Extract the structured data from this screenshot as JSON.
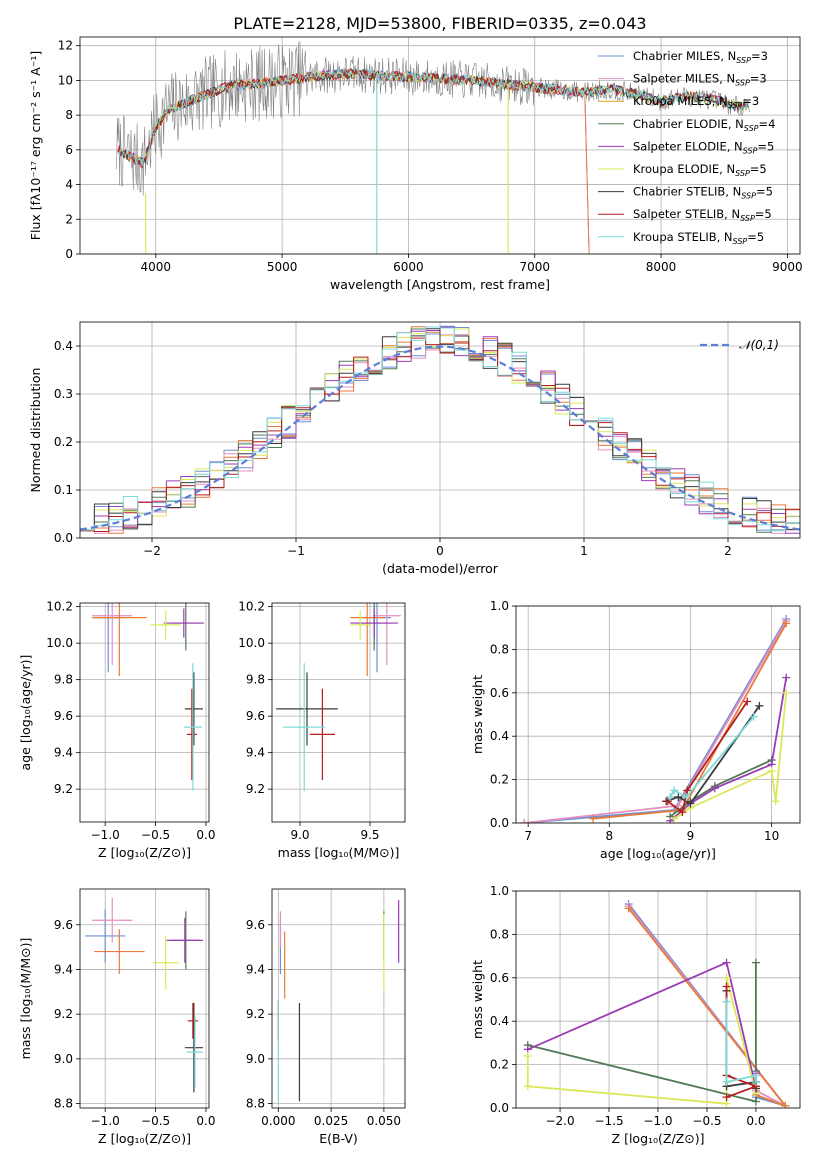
{
  "figure_title": "PLATE=2128, MJD=53800, FIBERID=0335, z=0.043",
  "model_colors": [
    "#6f8fd6",
    "#e58fc0",
    "#d6a21e",
    "#507a55",
    "#9a3db5",
    "#dbe85a",
    "#3c3c3c",
    "#b51e1e",
    "#7fd8d8"
  ],
  "extra_colors": {
    "data": "#808080",
    "orange": "#e87a3a",
    "gauss": "#5b7fd6",
    "grid": "#b0b0b0"
  },
  "chart_data": [
    {
      "id": "spectrum",
      "type": "line",
      "xlabel": "wavelength [Angstrom, rest frame]",
      "ylabel": "Flux [fλ10⁻¹⁷ erg cm⁻² s⁻¹ A⁻¹]",
      "xlim": [
        3400,
        9100
      ],
      "ylim": [
        0,
        12.5
      ],
      "xticks": [
        4000,
        5000,
        6000,
        7000,
        8000,
        9000
      ],
      "yticks": [
        0,
        2,
        4,
        6,
        8,
        10,
        12
      ],
      "legend_position": "top-right",
      "legend": [
        {
          "name": "Chabrier MILES",
          "sub": "SSP",
          "n": "=3"
        },
        {
          "name": "Salpeter MILES",
          "sub": "SSP",
          "n": "=3"
        },
        {
          "name": "Kroupa MILES",
          "sub": "SSP",
          "n": "=3"
        },
        {
          "name": "Chabrier ELODIE",
          "sub": "SSP",
          "n": "=4"
        },
        {
          "name": "Salpeter ELODIE",
          "sub": "SSP",
          "n": "=5"
        },
        {
          "name": "Kroupa ELODIE",
          "sub": "SSP",
          "n": "=5"
        },
        {
          "name": "Chabrier STELIB",
          "sub": "SSP",
          "n": "=5"
        },
        {
          "name": "Salpeter STELIB",
          "sub": "SSP",
          "n": "=5"
        },
        {
          "name": "Kroupa STELIB",
          "sub": "SSP",
          "n": "=5"
        }
      ],
      "continuum": {
        "x": [
          3700,
          3800,
          3900,
          4000,
          4100,
          4200,
          4400,
          4600,
          4800,
          5000,
          5200,
          5500,
          6000,
          6500,
          7000,
          7400,
          7600,
          7800,
          8000,
          8200,
          8400,
          8600,
          8700
        ],
        "y": [
          6.0,
          5.6,
          5.2,
          7.3,
          8.3,
          8.6,
          9.2,
          9.7,
          9.8,
          10.0,
          10.2,
          10.4,
          10.2,
          10.0,
          9.6,
          9.3,
          9.5,
          9.2,
          8.8,
          9.1,
          8.9,
          8.5,
          8.6
        ]
      }
    },
    {
      "id": "residuals",
      "type": "histogram",
      "xlabel": "(data-model)/error",
      "ylabel": "Normed distribution",
      "xlim": [
        -2.5,
        2.5
      ],
      "ylim": [
        0,
        0.45
      ],
      "xticks": [
        -2,
        -1,
        0,
        1,
        2
      ],
      "yticks": [
        0.0,
        0.1,
        0.2,
        0.3,
        0.4
      ],
      "bin_edges_start": -2.5,
      "bin_width": 0.1,
      "legend_label": "𝒩(0,1)",
      "legend_position": "top-right"
    },
    {
      "id": "age_vs_z",
      "type": "errorbar",
      "xlabel": "Z [log₁₀(Z/Z⊙)]",
      "ylabel": "age  [log₁₀(age/yr)]",
      "xlim": [
        -1.25,
        0.03
      ],
      "ylim": [
        9.02,
        10.22
      ],
      "xticks": [
        -1.0,
        -0.5,
        0.0
      ],
      "yticks": [
        9.2,
        9.4,
        9.6,
        9.8,
        10.0,
        10.2
      ],
      "points": [
        {
          "m": 0,
          "x": -0.97,
          "xe": 0.15,
          "y": 10.14,
          "ye": 0.3
        },
        {
          "m": 1,
          "x": -0.93,
          "xe": 0.2,
          "y": 10.15,
          "ye": 0.27
        },
        {
          "m": 2,
          "x": -0.86,
          "xe": 0.27,
          "y": 10.14,
          "ye": 0.32
        },
        {
          "m": 3,
          "x": -0.2,
          "xe": 0.15,
          "y": 10.11,
          "ye": 0.15
        },
        {
          "m": 4,
          "x": -0.22,
          "xe": 0.2,
          "y": 10.11,
          "ye": 0.08
        },
        {
          "m": 5,
          "x": -0.4,
          "xe": 0.15,
          "y": 10.1,
          "ye": 0.08
        },
        {
          "m": 6,
          "x": -0.12,
          "xe": 0.09,
          "y": 9.64,
          "ye": 0.2
        },
        {
          "m": 7,
          "x": -0.14,
          "xe": 0.05,
          "y": 9.5,
          "ye": 0.25
        },
        {
          "m": 8,
          "x": -0.13,
          "xe": 0.09,
          "y": 9.54,
          "ye": 0.35
        }
      ]
    },
    {
      "id": "age_vs_mass",
      "type": "errorbar",
      "xlabel": "mass [log₁₀(M/M⊙)]",
      "ylabel": "",
      "xlim": [
        8.8,
        9.75
      ],
      "ylim": [
        9.02,
        10.22
      ],
      "xticks": [
        9.0,
        9.5
      ],
      "yticks": [
        9.2,
        9.4,
        9.6,
        9.8,
        10.0,
        10.2
      ],
      "points": [
        {
          "m": 0,
          "x": 9.55,
          "xe": 0.1,
          "y": 10.14,
          "ye": 0.3
        },
        {
          "m": 1,
          "x": 9.62,
          "xe": 0.1,
          "y": 10.15,
          "ye": 0.27
        },
        {
          "m": 2,
          "x": 9.48,
          "xe": 0.12,
          "y": 10.14,
          "ye": 0.32
        },
        {
          "m": 3,
          "x": 9.53,
          "xe": 0.12,
          "y": 10.11,
          "ye": 0.15
        },
        {
          "m": 4,
          "x": 9.53,
          "xe": 0.17,
          "y": 10.11,
          "ye": 0.08
        },
        {
          "m": 5,
          "x": 9.43,
          "xe": 0.07,
          "y": 10.1,
          "ye": 0.08
        },
        {
          "m": 6,
          "x": 9.05,
          "xe": 0.22,
          "y": 9.64,
          "ye": 0.2
        },
        {
          "m": 7,
          "x": 9.16,
          "xe": 0.09,
          "y": 9.5,
          "ye": 0.25
        },
        {
          "m": 8,
          "x": 9.03,
          "xe": 0.15,
          "y": 9.54,
          "ye": 0.35
        }
      ]
    },
    {
      "id": "weight_vs_age",
      "type": "line",
      "xlabel": "age  [log₁₀(age/yr)]",
      "ylabel": "mass weight",
      "xlim": [
        6.85,
        10.35
      ],
      "ylim": [
        0,
        1.0
      ],
      "xticks": [
        7,
        8,
        9,
        10
      ],
      "yticks": [
        0.0,
        0.2,
        0.4,
        0.6,
        0.8,
        1.0
      ],
      "series": [
        {
          "m": 0,
          "x": [
            6.95,
            8.8,
            10.18
          ],
          "y": [
            0.0,
            0.06,
            0.94
          ]
        },
        {
          "m": 1,
          "x": [
            6.95,
            8.85,
            10.18
          ],
          "y": [
            0.0,
            0.08,
            0.93
          ]
        },
        {
          "m": 2,
          "x": [
            7.8,
            8.9,
            10.18
          ],
          "y": [
            0.02,
            0.06,
            0.92
          ]
        },
        {
          "m": 3,
          "x": [
            8.75,
            9.0,
            9.3,
            10.0
          ],
          "y": [
            0.03,
            0.1,
            0.17,
            0.29
          ]
        },
        {
          "m": 4,
          "x": [
            8.75,
            9.0,
            9.3,
            10.0,
            10.18
          ],
          "y": [
            0.01,
            0.09,
            0.16,
            0.27,
            0.67
          ]
        },
        {
          "m": 5,
          "x": [
            8.8,
            9.0,
            10.0,
            10.05,
            10.18
          ],
          "y": [
            0.02,
            0.07,
            0.24,
            0.1,
            0.6
          ]
        },
        {
          "m": 6,
          "x": [
            8.7,
            8.85,
            9.0,
            9.85
          ],
          "y": [
            0.1,
            0.12,
            0.09,
            0.54
          ]
        },
        {
          "m": 7,
          "x": [
            8.72,
            8.9,
            8.96,
            9.7
          ],
          "y": [
            0.1,
            0.05,
            0.15,
            0.56
          ]
        },
        {
          "m": 8,
          "x": [
            8.75,
            8.8,
            8.95,
            9.78
          ],
          "y": [
            0.12,
            0.15,
            0.12,
            0.49
          ]
        }
      ]
    },
    {
      "id": "mass_vs_z",
      "type": "errorbar",
      "xlabel": "Z [log₁₀(Z/Z⊙)]",
      "ylabel": "mass [log₁₀(M/M⊙)]",
      "xlim": [
        -1.25,
        0.03
      ],
      "ylim": [
        8.78,
        9.76
      ],
      "xticks": [
        -1.0,
        -0.5,
        0.0
      ],
      "yticks": [
        8.8,
        9.0,
        9.2,
        9.4,
        9.6
      ],
      "points": [
        {
          "m": 0,
          "x": -1.0,
          "xe": 0.2,
          "y": 9.55,
          "ye": 0.12
        },
        {
          "m": 1,
          "x": -0.93,
          "xe": 0.2,
          "y": 9.62,
          "ye": 0.1
        },
        {
          "m": 2,
          "x": -0.86,
          "xe": 0.25,
          "y": 9.48,
          "ye": 0.1
        },
        {
          "m": 3,
          "x": -0.2,
          "xe": 0.14,
          "y": 9.53,
          "ye": 0.13
        },
        {
          "m": 4,
          "x": -0.21,
          "xe": 0.18,
          "y": 9.53,
          "ye": 0.1
        },
        {
          "m": 5,
          "x": -0.4,
          "xe": 0.13,
          "y": 9.43,
          "ye": 0.12
        },
        {
          "m": 6,
          "x": -0.12,
          "xe": 0.09,
          "y": 9.05,
          "ye": 0.2
        },
        {
          "m": 7,
          "x": -0.13,
          "xe": 0.05,
          "y": 9.17,
          "ye": 0.08
        },
        {
          "m": 8,
          "x": -0.11,
          "xe": 0.08,
          "y": 9.03,
          "ye": 0.16
        }
      ]
    },
    {
      "id": "mass_vs_ebv",
      "type": "errorbar",
      "xlabel": "E(B-V)",
      "ylabel": "",
      "xlim": [
        -0.003,
        0.06
      ],
      "ylim": [
        8.78,
        9.76
      ],
      "xticks": [
        0.0,
        0.025,
        0.05
      ],
      "xtick_labels": [
        "0.000",
        "0.025",
        "0.050"
      ],
      "yticks": [
        8.8,
        9.0,
        9.2,
        9.4,
        9.6
      ],
      "points": [
        {
          "m": 0,
          "x": 0.001,
          "xe": 0,
          "y": 9.5,
          "ye": 0.12
        },
        {
          "m": 1,
          "x": 0.001,
          "xe": 0,
          "y": 9.58,
          "ye": 0.08
        },
        {
          "m": 2,
          "x": 0.003,
          "xe": 0,
          "y": 9.42,
          "ye": 0.15
        },
        {
          "m": 3,
          "x": 0.05,
          "xe": 0,
          "y": 9.55,
          "ye": 0.11
        },
        {
          "m": 4,
          "x": 0.057,
          "xe": 0,
          "y": 9.57,
          "ye": 0.14
        },
        {
          "m": 5,
          "x": 0.05,
          "xe": 0,
          "y": 9.48,
          "ye": 0.17
        },
        {
          "m": 6,
          "x": 0.01,
          "xe": 0,
          "y": 9.03,
          "ye": 0.22
        },
        {
          "m": 7,
          "x": 0.0,
          "xe": 0,
          "y": 9.17,
          "ye": 0.09
        },
        {
          "m": 8,
          "x": 0.0,
          "xe": 0,
          "y": 9.03,
          "ye": 0.23
        }
      ]
    },
    {
      "id": "weight_vs_z",
      "type": "line",
      "xlabel": "Z [log₁₀(Z/Z⊙)]",
      "ylabel": "mass weight",
      "xlim": [
        -2.45,
        0.45
      ],
      "ylim": [
        0,
        1.0
      ],
      "xticks": [
        -2.0,
        -1.5,
        -1.0,
        -0.5,
        0.0
      ],
      "yticks": [
        0.0,
        0.2,
        0.4,
        0.6,
        0.8,
        1.0
      ],
      "series": [
        {
          "m": 0,
          "x": [
            -1.3,
            0.3,
            0.0
          ],
          "y": [
            0.94,
            0.01,
            0.05
          ]
        },
        {
          "m": 1,
          "x": [
            -1.3,
            0.3,
            0.0
          ],
          "y": [
            0.93,
            0.01,
            0.08
          ]
        },
        {
          "m": 2,
          "x": [
            -1.3,
            0.3,
            0.0
          ],
          "y": [
            0.92,
            0.01,
            0.06
          ]
        },
        {
          "m": 3,
          "x": [
            -2.33,
            0.0,
            0.0,
            0.0
          ],
          "y": [
            0.29,
            0.03,
            0.17,
            0.67
          ]
        },
        {
          "m": 4,
          "x": [
            -2.33,
            -0.3,
            0.0,
            0.0
          ],
          "y": [
            0.27,
            0.67,
            0.09,
            0.16
          ]
        },
        {
          "m": 5,
          "x": [
            -2.33,
            -2.33,
            -0.3,
            -0.3,
            0.0
          ],
          "y": [
            0.24,
            0.1,
            0.02,
            0.6,
            0.07
          ]
        },
        {
          "m": 6,
          "x": [
            -0.3,
            -0.3,
            0.0,
            0.0
          ],
          "y": [
            0.54,
            0.1,
            0.12,
            0.09
          ]
        },
        {
          "m": 7,
          "x": [
            -0.3,
            -0.3,
            0.0,
            -0.3
          ],
          "y": [
            0.56,
            0.15,
            0.1,
            0.05
          ]
        },
        {
          "m": 8,
          "x": [
            -0.3,
            -0.3,
            0.0,
            0.0
          ],
          "y": [
            0.49,
            0.12,
            0.15,
            0.12
          ]
        }
      ]
    }
  ]
}
